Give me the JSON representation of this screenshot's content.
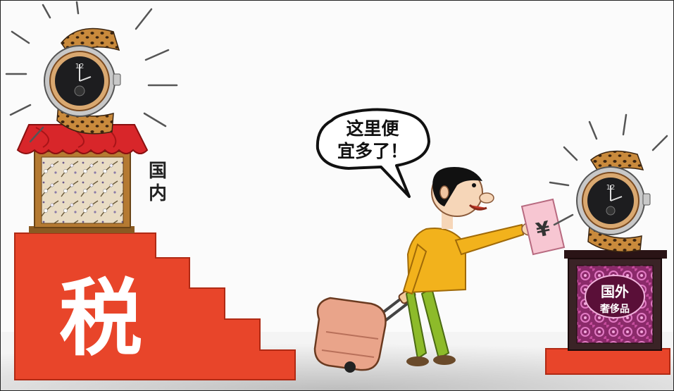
{
  "speech_bubble": {
    "line1": "这里便",
    "line2": "宜多了！"
  },
  "domestic_label": {
    "line1": "国",
    "line2": "内"
  },
  "tax_character": "税",
  "price_tag_symbol": "¥",
  "foreign_pedestal": {
    "line1": "国外",
    "line2": "奢侈品"
  },
  "colors": {
    "tax_stairs": "#e8452a",
    "awning": "#d8262a",
    "shirt": "#f2b21c",
    "pants": "#8dbb2a",
    "suitcase": "#e9a48a",
    "price_tag": "#f7c6d2",
    "foreign_pedestal": "#3a2326"
  }
}
